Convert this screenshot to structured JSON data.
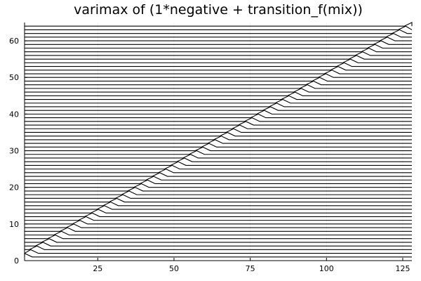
{
  "chart_data": {
    "type": "line",
    "title": "varimax of (1*negative + transition_f(mix))",
    "xlabel": "",
    "ylabel": "",
    "xlim": [
      1,
      128
    ],
    "ylim": [
      0,
      65
    ],
    "grid": true,
    "legend": "none",
    "line_color": "#000000",
    "xticks": [
      25,
      50,
      75,
      100,
      125
    ],
    "yticks": [
      0,
      10,
      20,
      30,
      40,
      50,
      60
    ],
    "series_count": 64,
    "series_pattern": "series k (k = 1..64) stays flat at y = k except a short triangular bump near x = 2k that rises one unit, tracing a diagonal from (1, 1) to (128, 64)"
  }
}
